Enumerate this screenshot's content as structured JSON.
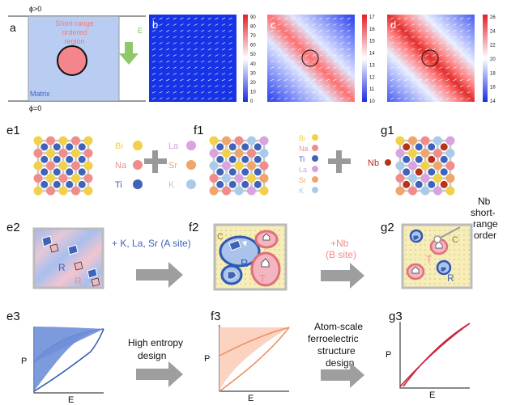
{
  "row1": {
    "a": {
      "label": "a",
      "phi_top": "ϕ>0",
      "phi_bottom": "ϕ=0",
      "region": [
        "Short-range",
        "ordered",
        "region"
      ],
      "matrix": "Matrix",
      "field": "E"
    },
    "b": {
      "label": "b",
      "ticks": [
        "90",
        "80",
        "70",
        "60",
        "50",
        "40",
        "30",
        "20",
        "10",
        "0"
      ]
    },
    "c": {
      "label": "c",
      "ticks": [
        "17",
        "16",
        "15",
        "14",
        "13",
        "12",
        "11",
        "10"
      ]
    },
    "d": {
      "label": "d",
      "ticks": [
        "26",
        "24",
        "22",
        "20",
        "18",
        "16",
        "14"
      ]
    }
  },
  "row2": {
    "e1": "e1",
    "f1": "f1",
    "g1": "g1",
    "legend_e1": [
      {
        "name": "Bi",
        "color": "#f2d04a"
      },
      {
        "name": "Na",
        "color": "#f08c8c"
      },
      {
        "name": "Ti",
        "color": "#3f63b8"
      }
    ],
    "legend_mid": [
      {
        "name": "La",
        "color": "#d9a3e0"
      },
      {
        "name": "Sr",
        "color": "#f0a56a"
      },
      {
        "name": "K",
        "color": "#a9cbea"
      }
    ],
    "legend_f1": [
      {
        "name": "Bi",
        "color": "#f2d04a"
      },
      {
        "name": "Na",
        "color": "#f08c8c"
      },
      {
        "name": "Ti",
        "color": "#3f63b8"
      },
      {
        "name": "La",
        "color": "#d9a3e0"
      },
      {
        "name": "Sr",
        "color": "#f0a56a"
      },
      {
        "name": "K",
        "color": "#a9cbea"
      }
    ],
    "nb": "Nb"
  },
  "row3": {
    "e2": "e2",
    "f2": "f2",
    "g2": "g2",
    "R": "R",
    "T": "T",
    "C": "C",
    "arrow1": "+ K, La, Sr (A site)",
    "arrow2": [
      "+Nb",
      "(B site)"
    ],
    "nb_note": [
      "Nb",
      "short-",
      "range",
      "order"
    ]
  },
  "row4": {
    "e3": "e3",
    "f3": "f3",
    "g3": "g3",
    "P": "P",
    "E": "E",
    "arrow1": [
      "High entropy",
      "design"
    ],
    "arrow2": [
      "Atom-scale",
      "ferroelectric",
      "structure",
      "design"
    ]
  },
  "colors": {
    "blue": "#3f63b8",
    "pink": "#f08c8c",
    "yellow": "#f2d04a",
    "arrowGray": "#9e9e9e",
    "matrix": "#b9cdf2",
    "greenArrow": "#8ec86a"
  }
}
